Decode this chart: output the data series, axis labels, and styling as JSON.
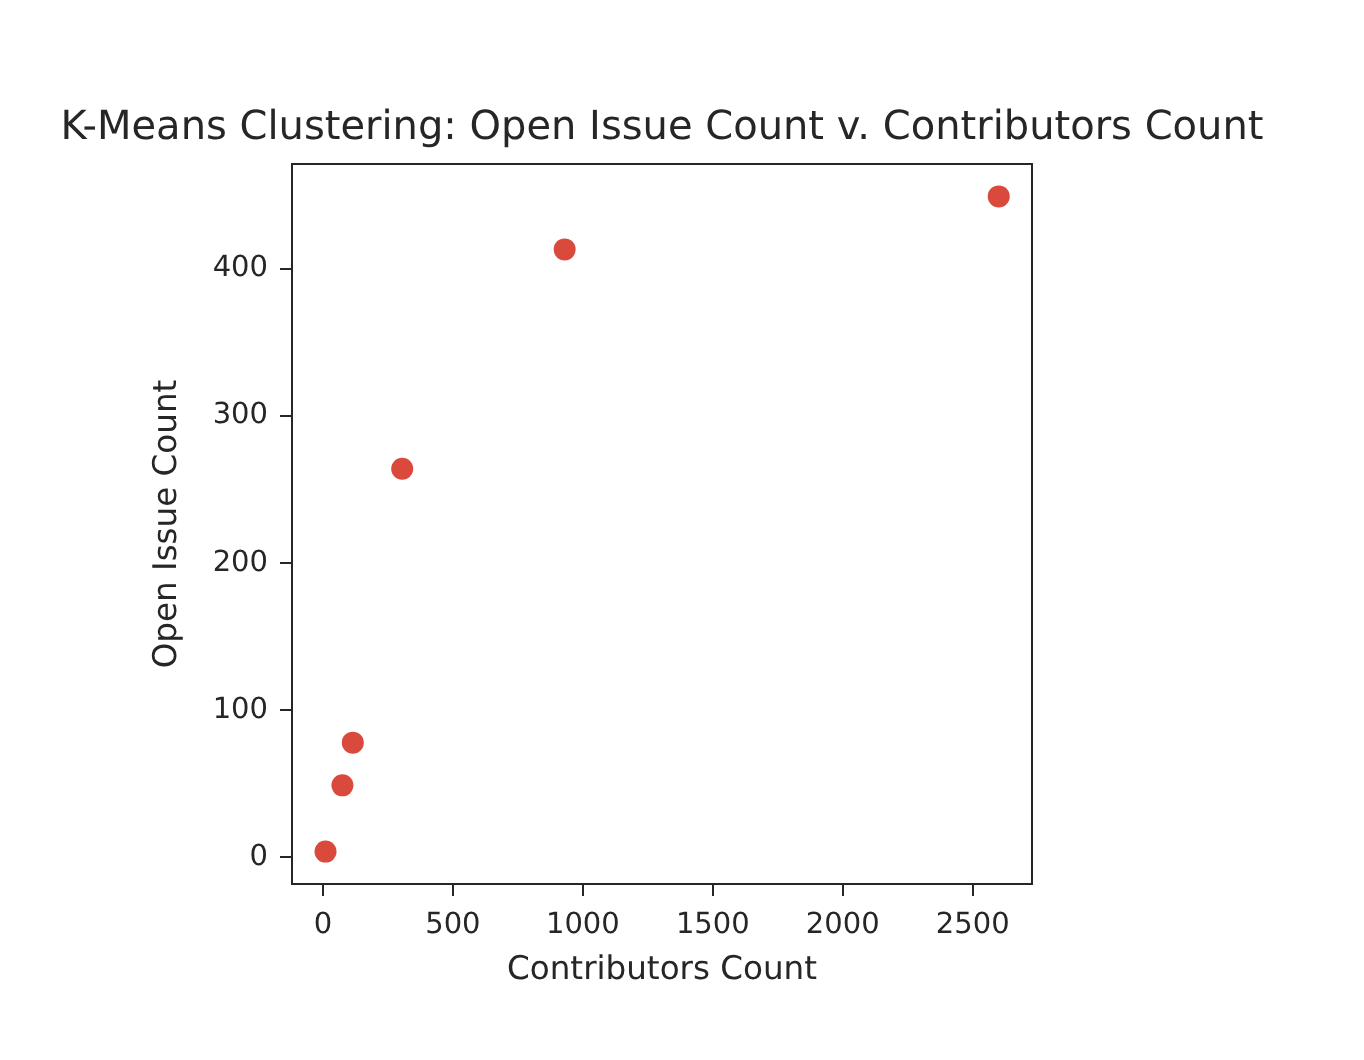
{
  "chart_data": {
    "type": "scatter",
    "title": "K-Means Clustering: Open Issue Count v. Contributors Count",
    "xlabel": "Contributors Count",
    "ylabel": "Open Issue Count",
    "x": [
      10,
      75,
      115,
      305,
      930,
      2600
    ],
    "values": [
      4,
      49,
      78,
      264,
      413,
      449
    ],
    "color": "#d9493c",
    "xlim": [
      -119,
      2728
    ],
    "ylim": [
      -18,
      471
    ],
    "xticks": [
      0,
      500,
      1000,
      1500,
      2000,
      2500
    ],
    "yticks": [
      0,
      100,
      200,
      300,
      400
    ],
    "marker": "circle",
    "grid": false,
    "legend": false
  }
}
